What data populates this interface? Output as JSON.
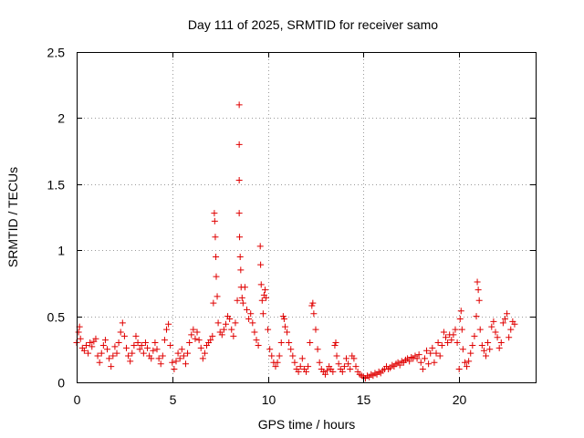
{
  "chart_data": {
    "type": "scatter",
    "title": "Day 111 of 2025, SRMTID for receiver samo",
    "xlabel": "GPS time / hours",
    "ylabel": "SRMTID / TECUs",
    "xlim": [
      0,
      24
    ],
    "ylim": [
      0,
      2.5
    ],
    "xticks": [
      0,
      5,
      10,
      15,
      20
    ],
    "xtick_labels": [
      "0",
      "5",
      "10",
      "15",
      "20"
    ],
    "yticks": [
      0,
      0.5,
      1,
      1.5,
      2,
      2.5
    ],
    "ytick_labels": [
      "0",
      "0.5",
      "1",
      "1.5",
      "2",
      "2.5"
    ],
    "grid": true,
    "marker": "+",
    "color": "#e00000",
    "series": [
      {
        "name": "samo",
        "points": [
          [
            0.0,
            0.3
          ],
          [
            0.1,
            0.38
          ],
          [
            0.15,
            0.42
          ],
          [
            0.2,
            0.33
          ],
          [
            0.3,
            0.26
          ],
          [
            0.4,
            0.24
          ],
          [
            0.5,
            0.28
          ],
          [
            0.6,
            0.22
          ],
          [
            0.7,
            0.3
          ],
          [
            0.8,
            0.27
          ],
          [
            0.9,
            0.31
          ],
          [
            1.0,
            0.33
          ],
          [
            1.1,
            0.2
          ],
          [
            1.2,
            0.15
          ],
          [
            1.3,
            0.22
          ],
          [
            1.4,
            0.28
          ],
          [
            1.5,
            0.32
          ],
          [
            1.6,
            0.25
          ],
          [
            1.7,
            0.18
          ],
          [
            1.8,
            0.12
          ],
          [
            1.9,
            0.2
          ],
          [
            2.0,
            0.27
          ],
          [
            2.1,
            0.22
          ],
          [
            2.2,
            0.3
          ],
          [
            2.3,
            0.38
          ],
          [
            2.4,
            0.45
          ],
          [
            2.5,
            0.35
          ],
          [
            2.6,
            0.26
          ],
          [
            2.7,
            0.2
          ],
          [
            2.8,
            0.16
          ],
          [
            2.9,
            0.22
          ],
          [
            3.0,
            0.28
          ],
          [
            3.1,
            0.35
          ],
          [
            3.2,
            0.3
          ],
          [
            3.3,
            0.25
          ],
          [
            3.4,
            0.28
          ],
          [
            3.5,
            0.22
          ],
          [
            3.6,
            0.3
          ],
          [
            3.7,
            0.26
          ],
          [
            3.8,
            0.2
          ],
          [
            3.9,
            0.18
          ],
          [
            4.0,
            0.24
          ],
          [
            4.1,
            0.3
          ],
          [
            4.2,
            0.25
          ],
          [
            4.3,
            0.18
          ],
          [
            4.4,
            0.14
          ],
          [
            4.5,
            0.2
          ],
          [
            4.6,
            0.32
          ],
          [
            4.7,
            0.4
          ],
          [
            4.8,
            0.44
          ],
          [
            4.9,
            0.28
          ],
          [
            5.0,
            0.15
          ],
          [
            5.1,
            0.1
          ],
          [
            5.2,
            0.16
          ],
          [
            5.3,
            0.22
          ],
          [
            5.4,
            0.18
          ],
          [
            5.5,
            0.25
          ],
          [
            5.6,
            0.2
          ],
          [
            5.7,
            0.14
          ],
          [
            5.8,
            0.22
          ],
          [
            5.9,
            0.3
          ],
          [
            6.0,
            0.36
          ],
          [
            6.1,
            0.4
          ],
          [
            6.2,
            0.33
          ],
          [
            6.3,
            0.38
          ],
          [
            6.4,
            0.32
          ],
          [
            6.5,
            0.26
          ],
          [
            6.6,
            0.18
          ],
          [
            6.7,
            0.22
          ],
          [
            6.8,
            0.28
          ],
          [
            6.9,
            0.3
          ],
          [
            7.0,
            0.32
          ],
          [
            7.1,
            0.35
          ],
          [
            7.15,
            0.6
          ],
          [
            7.2,
            1.28
          ],
          [
            7.22,
            1.22
          ],
          [
            7.25,
            1.1
          ],
          [
            7.28,
            0.95
          ],
          [
            7.3,
            0.8
          ],
          [
            7.35,
            0.65
          ],
          [
            7.4,
            0.45
          ],
          [
            7.5,
            0.38
          ],
          [
            7.6,
            0.36
          ],
          [
            7.7,
            0.4
          ],
          [
            7.8,
            0.44
          ],
          [
            7.9,
            0.5
          ],
          [
            8.0,
            0.48
          ],
          [
            8.1,
            0.4
          ],
          [
            8.2,
            0.35
          ],
          [
            8.3,
            0.45
          ],
          [
            8.4,
            0.62
          ],
          [
            8.5,
            2.1
          ],
          [
            8.5,
            1.8
          ],
          [
            8.5,
            1.53
          ],
          [
            8.5,
            1.28
          ],
          [
            8.52,
            1.1
          ],
          [
            8.55,
            0.95
          ],
          [
            8.58,
            0.85
          ],
          [
            8.6,
            0.72
          ],
          [
            8.65,
            0.64
          ],
          [
            8.7,
            0.6
          ],
          [
            8.8,
            0.72
          ],
          [
            8.9,
            0.55
          ],
          [
            9.0,
            0.48
          ],
          [
            9.1,
            0.52
          ],
          [
            9.2,
            0.45
          ],
          [
            9.3,
            0.38
          ],
          [
            9.4,
            0.32
          ],
          [
            9.5,
            0.28
          ],
          [
            9.6,
            1.03
          ],
          [
            9.62,
            0.89
          ],
          [
            9.65,
            0.74
          ],
          [
            9.7,
            0.62
          ],
          [
            9.75,
            0.52
          ],
          [
            9.8,
            0.66
          ],
          [
            9.85,
            0.7
          ],
          [
            9.9,
            0.64
          ],
          [
            10.0,
            0.4
          ],
          [
            10.1,
            0.25
          ],
          [
            10.2,
            0.2
          ],
          [
            10.3,
            0.15
          ],
          [
            10.4,
            0.12
          ],
          [
            10.5,
            0.15
          ],
          [
            10.6,
            0.2
          ],
          [
            10.7,
            0.3
          ],
          [
            10.8,
            0.5
          ],
          [
            10.85,
            0.48
          ],
          [
            10.9,
            0.42
          ],
          [
            11.0,
            0.38
          ],
          [
            11.1,
            0.3
          ],
          [
            11.2,
            0.25
          ],
          [
            11.3,
            0.2
          ],
          [
            11.4,
            0.15
          ],
          [
            11.5,
            0.1
          ],
          [
            11.6,
            0.08
          ],
          [
            11.7,
            0.12
          ],
          [
            11.8,
            0.18
          ],
          [
            11.9,
            0.1
          ],
          [
            12.0,
            0.08
          ],
          [
            12.1,
            0.12
          ],
          [
            12.2,
            0.3
          ],
          [
            12.3,
            0.58
          ],
          [
            12.35,
            0.6
          ],
          [
            12.4,
            0.52
          ],
          [
            12.5,
            0.4
          ],
          [
            12.6,
            0.25
          ],
          [
            12.7,
            0.15
          ],
          [
            12.8,
            0.1
          ],
          [
            12.9,
            0.08
          ],
          [
            13.0,
            0.06
          ],
          [
            13.1,
            0.09
          ],
          [
            13.2,
            0.12
          ],
          [
            13.3,
            0.1
          ],
          [
            13.4,
            0.08
          ],
          [
            13.5,
            0.28
          ],
          [
            13.55,
            0.3
          ],
          [
            13.6,
            0.2
          ],
          [
            13.7,
            0.14
          ],
          [
            13.8,
            0.1
          ],
          [
            13.9,
            0.08
          ],
          [
            14.0,
            0.12
          ],
          [
            14.1,
            0.18
          ],
          [
            14.2,
            0.14
          ],
          [
            14.3,
            0.1
          ],
          [
            14.4,
            0.2
          ],
          [
            14.5,
            0.18
          ],
          [
            14.6,
            0.12
          ],
          [
            14.7,
            0.08
          ],
          [
            14.8,
            0.06
          ],
          [
            14.9,
            0.05
          ],
          [
            15.0,
            0.04
          ],
          [
            15.1,
            0.03
          ],
          [
            15.2,
            0.05
          ],
          [
            15.3,
            0.04
          ],
          [
            15.4,
            0.06
          ],
          [
            15.5,
            0.05
          ],
          [
            15.6,
            0.07
          ],
          [
            15.7,
            0.06
          ],
          [
            15.8,
            0.08
          ],
          [
            15.9,
            0.07
          ],
          [
            16.0,
            0.09
          ],
          [
            16.1,
            0.1
          ],
          [
            16.2,
            0.12
          ],
          [
            16.3,
            0.1
          ],
          [
            16.4,
            0.11
          ],
          [
            16.5,
            0.13
          ],
          [
            16.6,
            0.12
          ],
          [
            16.7,
            0.14
          ],
          [
            16.8,
            0.15
          ],
          [
            16.9,
            0.13
          ],
          [
            17.0,
            0.16
          ],
          [
            17.1,
            0.15
          ],
          [
            17.2,
            0.17
          ],
          [
            17.3,
            0.18
          ],
          [
            17.4,
            0.16
          ],
          [
            17.5,
            0.19
          ],
          [
            17.6,
            0.18
          ],
          [
            17.7,
            0.2
          ],
          [
            17.8,
            0.18
          ],
          [
            17.9,
            0.21
          ],
          [
            18.0,
            0.15
          ],
          [
            18.1,
            0.1
          ],
          [
            18.2,
            0.18
          ],
          [
            18.3,
            0.24
          ],
          [
            18.4,
            0.14
          ],
          [
            18.5,
            0.22
          ],
          [
            18.6,
            0.26
          ],
          [
            18.7,
            0.15
          ],
          [
            18.8,
            0.22
          ],
          [
            18.9,
            0.3
          ],
          [
            19.0,
            0.2
          ],
          [
            19.1,
            0.28
          ],
          [
            19.2,
            0.38
          ],
          [
            19.3,
            0.34
          ],
          [
            19.4,
            0.3
          ],
          [
            19.5,
            0.36
          ],
          [
            19.6,
            0.32
          ],
          [
            19.7,
            0.36
          ],
          [
            19.8,
            0.4
          ],
          [
            19.9,
            0.3
          ],
          [
            20.0,
            0.1
          ],
          [
            20.05,
            0.48
          ],
          [
            20.1,
            0.54
          ],
          [
            20.15,
            0.4
          ],
          [
            20.2,
            0.25
          ],
          [
            20.3,
            0.15
          ],
          [
            20.4,
            0.12
          ],
          [
            20.5,
            0.16
          ],
          [
            20.6,
            0.22
          ],
          [
            20.7,
            0.28
          ],
          [
            20.8,
            0.35
          ],
          [
            20.9,
            0.5
          ],
          [
            20.95,
            0.76
          ],
          [
            21.0,
            0.7
          ],
          [
            21.05,
            0.62
          ],
          [
            21.1,
            0.4
          ],
          [
            21.2,
            0.28
          ],
          [
            21.3,
            0.24
          ],
          [
            21.4,
            0.2
          ],
          [
            21.5,
            0.3
          ],
          [
            21.6,
            0.25
          ],
          [
            21.7,
            0.42
          ],
          [
            21.8,
            0.46
          ],
          [
            21.9,
            0.38
          ],
          [
            22.0,
            0.34
          ],
          [
            22.1,
            0.26
          ],
          [
            22.2,
            0.3
          ],
          [
            22.3,
            0.45
          ],
          [
            22.4,
            0.48
          ],
          [
            22.5,
            0.52
          ],
          [
            22.6,
            0.34
          ],
          [
            22.7,
            0.4
          ],
          [
            22.8,
            0.46
          ],
          [
            22.9,
            0.44
          ]
        ]
      }
    ]
  }
}
